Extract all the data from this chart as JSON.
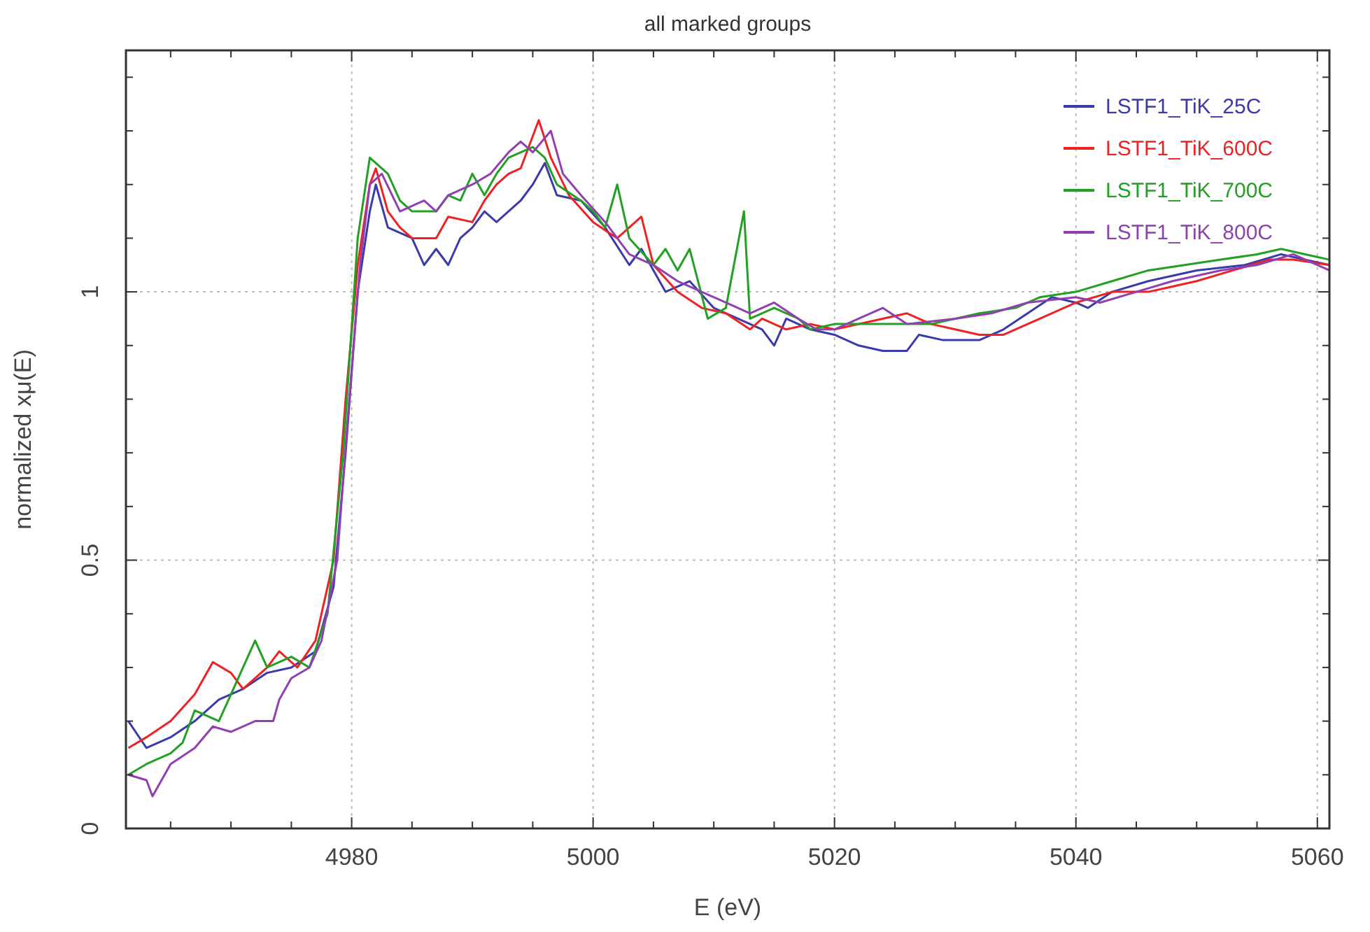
{
  "chart_data": {
    "type": "line",
    "title": "all marked groups",
    "xlabel": "E (eV)",
    "ylabel": "normalized xμ(E)",
    "xlim": [
      4961.3,
      5061
    ],
    "ylim": [
      0,
      1.45
    ],
    "xticks": [
      {
        "value": 4965,
        "label": null
      },
      {
        "value": 4970,
        "label": null
      },
      {
        "value": 4975,
        "label": null
      },
      4980,
      {
        "value": 4985,
        "label": null
      },
      {
        "value": 4990,
        "label": null
      },
      {
        "value": 4995,
        "label": null
      },
      5000,
      {
        "value": 5005,
        "label": null
      },
      {
        "value": 5010,
        "label": null
      },
      {
        "value": 5015,
        "label": null
      },
      5020,
      {
        "value": 5025,
        "label": null
      },
      {
        "value": 5030,
        "label": null
      },
      {
        "value": 5035,
        "label": null
      },
      5040,
      {
        "value": 5045,
        "label": null
      },
      {
        "value": 5050,
        "label": null
      },
      {
        "value": 5055,
        "label": null
      },
      5060
    ],
    "yticks": [
      0,
      {
        "value": 0.1,
        "label": null
      },
      {
        "value": 0.2,
        "label": null
      },
      {
        "value": 0.3,
        "label": null
      },
      {
        "value": 0.4,
        "label": null
      },
      0.5,
      {
        "value": 0.6,
        "label": null
      },
      {
        "value": 0.7,
        "label": null
      },
      {
        "value": 0.8,
        "label": null
      },
      {
        "value": 0.9,
        "label": null
      },
      1,
      {
        "value": 1.1,
        "label": null
      },
      {
        "value": 1.2,
        "label": null
      },
      {
        "value": 1.3,
        "label": null
      },
      {
        "value": 1.4,
        "label": null
      }
    ],
    "grid": true,
    "legend": "top right",
    "marker": "none",
    "line_style": "solid",
    "series": [
      {
        "name": "LSTF1_TiK_25C",
        "color": "#3a3aaa",
        "x": [
          4961.5,
          4963,
          4965,
          4967,
          4969,
          4971,
          4973,
          4975,
          4977,
          4978.5,
          4979.5,
          4980.5,
          4981.5,
          4982,
          4983,
          4985,
          4986,
          4987,
          4988,
          4989,
          4990,
          4991,
          4992,
          4994,
          4995,
          4996,
          4997,
          4999,
          5001,
          5003,
          5004,
          5006,
          5008,
          5010,
          5012,
          5014,
          5015,
          5016,
          5018,
          5020,
          5022,
          5024,
          5026,
          5027,
          5029,
          5032,
          5034,
          5036,
          5038,
          5040,
          5041,
          5043,
          5046,
          5050,
          5054,
          5057,
          5059,
          5061
        ],
        "values": [
          0.2,
          0.15,
          0.17,
          0.2,
          0.24,
          0.26,
          0.29,
          0.3,
          0.33,
          0.45,
          0.7,
          1.0,
          1.15,
          1.2,
          1.12,
          1.1,
          1.05,
          1.08,
          1.05,
          1.1,
          1.12,
          1.15,
          1.13,
          1.17,
          1.2,
          1.24,
          1.18,
          1.17,
          1.12,
          1.05,
          1.08,
          1.0,
          1.02,
          0.97,
          0.95,
          0.93,
          0.9,
          0.95,
          0.93,
          0.92,
          0.9,
          0.89,
          0.89,
          0.92,
          0.91,
          0.91,
          0.93,
          0.96,
          0.99,
          0.98,
          0.97,
          1.0,
          1.02,
          1.04,
          1.05,
          1.07,
          1.06,
          1.05
        ]
      },
      {
        "name": "LSTF1_TiK_600C",
        "color": "#ee2222",
        "x": [
          4961.5,
          4963,
          4965,
          4967,
          4968.5,
          4970,
          4971,
          4973,
          4974,
          4975.5,
          4977,
          4978.5,
          4979.5,
          4980.5,
          4981.5,
          4982,
          4983,
          4984,
          4985,
          4987,
          4988,
          4990,
          4991,
          4992,
          4993,
          4994,
          4995.5,
          4996.5,
          4998,
          5000,
          5002,
          5004,
          5005,
          5007,
          5009,
          5011,
          5013,
          5014,
          5016,
          5018,
          5020,
          5024,
          5026,
          5028,
          5030,
          5032,
          5034,
          5036,
          5038,
          5040,
          5043,
          5046,
          5048,
          5050,
          5053,
          5056,
          5058,
          5061
        ],
        "values": [
          0.15,
          0.17,
          0.2,
          0.25,
          0.31,
          0.29,
          0.26,
          0.3,
          0.33,
          0.3,
          0.35,
          0.5,
          0.8,
          1.05,
          1.2,
          1.23,
          1.15,
          1.12,
          1.1,
          1.1,
          1.14,
          1.13,
          1.17,
          1.2,
          1.22,
          1.23,
          1.32,
          1.25,
          1.18,
          1.13,
          1.1,
          1.14,
          1.05,
          1.0,
          0.97,
          0.96,
          0.93,
          0.95,
          0.93,
          0.94,
          0.93,
          0.95,
          0.96,
          0.94,
          0.93,
          0.92,
          0.92,
          0.94,
          0.96,
          0.98,
          1.0,
          1.0,
          1.01,
          1.02,
          1.04,
          1.06,
          1.06,
          1.05
        ]
      },
      {
        "name": "LSTF1_TiK_700C",
        "color": "#22a022",
        "x": [
          4961.5,
          4963,
          4965,
          4966,
          4967,
          4969,
          4970,
          4971,
          4972,
          4973,
          4975,
          4976.5,
          4978,
          4979.3,
          4980.5,
          4981.5,
          4983,
          4984,
          4985,
          4987,
          4988,
          4989,
          4990,
          4991,
          4992,
          4993,
          4995,
          4996,
          4997,
          4999,
          5000,
          5001,
          5002,
          5003,
          5005,
          5006,
          5007,
          5008,
          5009.5,
          5011,
          5012.5,
          5013,
          5015,
          5017,
          5018,
          5020,
          5024,
          5028,
          5030,
          5032,
          5035,
          5037,
          5040,
          5043,
          5046,
          5049,
          5052,
          5055,
          5057,
          5059,
          5061
        ],
        "values": [
          0.1,
          0.12,
          0.14,
          0.16,
          0.22,
          0.2,
          0.25,
          0.3,
          0.35,
          0.3,
          0.32,
          0.3,
          0.4,
          0.7,
          1.1,
          1.25,
          1.22,
          1.17,
          1.15,
          1.15,
          1.18,
          1.17,
          1.22,
          1.18,
          1.22,
          1.25,
          1.27,
          1.25,
          1.2,
          1.17,
          1.15,
          1.12,
          1.2,
          1.1,
          1.05,
          1.08,
          1.04,
          1.08,
          0.95,
          0.97,
          1.15,
          0.95,
          0.97,
          0.95,
          0.93,
          0.94,
          0.94,
          0.94,
          0.95,
          0.96,
          0.97,
          0.99,
          1.0,
          1.02,
          1.04,
          1.05,
          1.06,
          1.07,
          1.08,
          1.07,
          1.06
        ]
      },
      {
        "name": "LSTF1_TiK_800C",
        "color": "#9040b0",
        "x": [
          4961.5,
          4963,
          4963.5,
          4965,
          4967,
          4968.5,
          4970,
          4972,
          4973.5,
          4974,
          4975,
          4976.5,
          4977.5,
          4978.8,
          4979.8,
          4980.7,
          4981.5,
          4982.5,
          4984,
          4986,
          4987,
          4988,
          4990,
          4991.5,
          4993,
          4994,
          4995,
          4996.5,
          4997.5,
          4999,
          5001,
          5003,
          5005,
          5007,
          5009,
          5011,
          5013,
          5015,
          5017,
          5018.5,
          5020,
          5022,
          5024,
          5026,
          5030,
          5033,
          5036,
          5040,
          5042,
          5045,
          5048,
          5052,
          5055,
          5058,
          5061
        ],
        "values": [
          0.1,
          0.09,
          0.06,
          0.12,
          0.15,
          0.19,
          0.18,
          0.2,
          0.2,
          0.24,
          0.28,
          0.3,
          0.35,
          0.5,
          0.8,
          1.05,
          1.2,
          1.22,
          1.15,
          1.17,
          1.15,
          1.18,
          1.2,
          1.22,
          1.26,
          1.28,
          1.26,
          1.3,
          1.22,
          1.18,
          1.13,
          1.07,
          1.05,
          1.02,
          1.0,
          0.98,
          0.96,
          0.98,
          0.95,
          0.93,
          0.93,
          0.95,
          0.97,
          0.94,
          0.95,
          0.96,
          0.98,
          0.99,
          0.98,
          1.0,
          1.02,
          1.04,
          1.05,
          1.07,
          1.04
        ]
      }
    ]
  }
}
